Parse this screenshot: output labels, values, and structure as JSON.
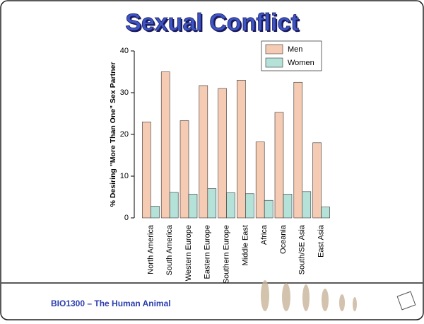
{
  "chart_data": {
    "type": "bar",
    "title": "Sexual Conflict",
    "ylabel": "% Desiring \"More Than One\" Sex Partner",
    "categories": [
      "North America",
      "South America",
      "Western Europe",
      "Eastern Europe",
      "Southern Europe",
      "Middle East",
      "Africa",
      "Oceania",
      "South/SE Asia",
      "East Asia"
    ],
    "series": [
      {
        "name": "Men",
        "color": "#f6cbb3",
        "values": [
          23,
          35,
          23.3,
          31.7,
          31,
          33,
          18.2,
          25.3,
          32.5,
          18
        ]
      },
      {
        "name": "Women",
        "color": "#b5e2d8",
        "values": [
          2.8,
          6.1,
          5.7,
          7,
          6,
          5.8,
          4.2,
          5.7,
          6.3,
          2.6
        ]
      }
    ],
    "ylim": [
      0,
      40
    ],
    "yticks": [
      0,
      10,
      20,
      30,
      40
    ],
    "legend": "upper right"
  },
  "footer": "BIO1300 – The Human Animal"
}
